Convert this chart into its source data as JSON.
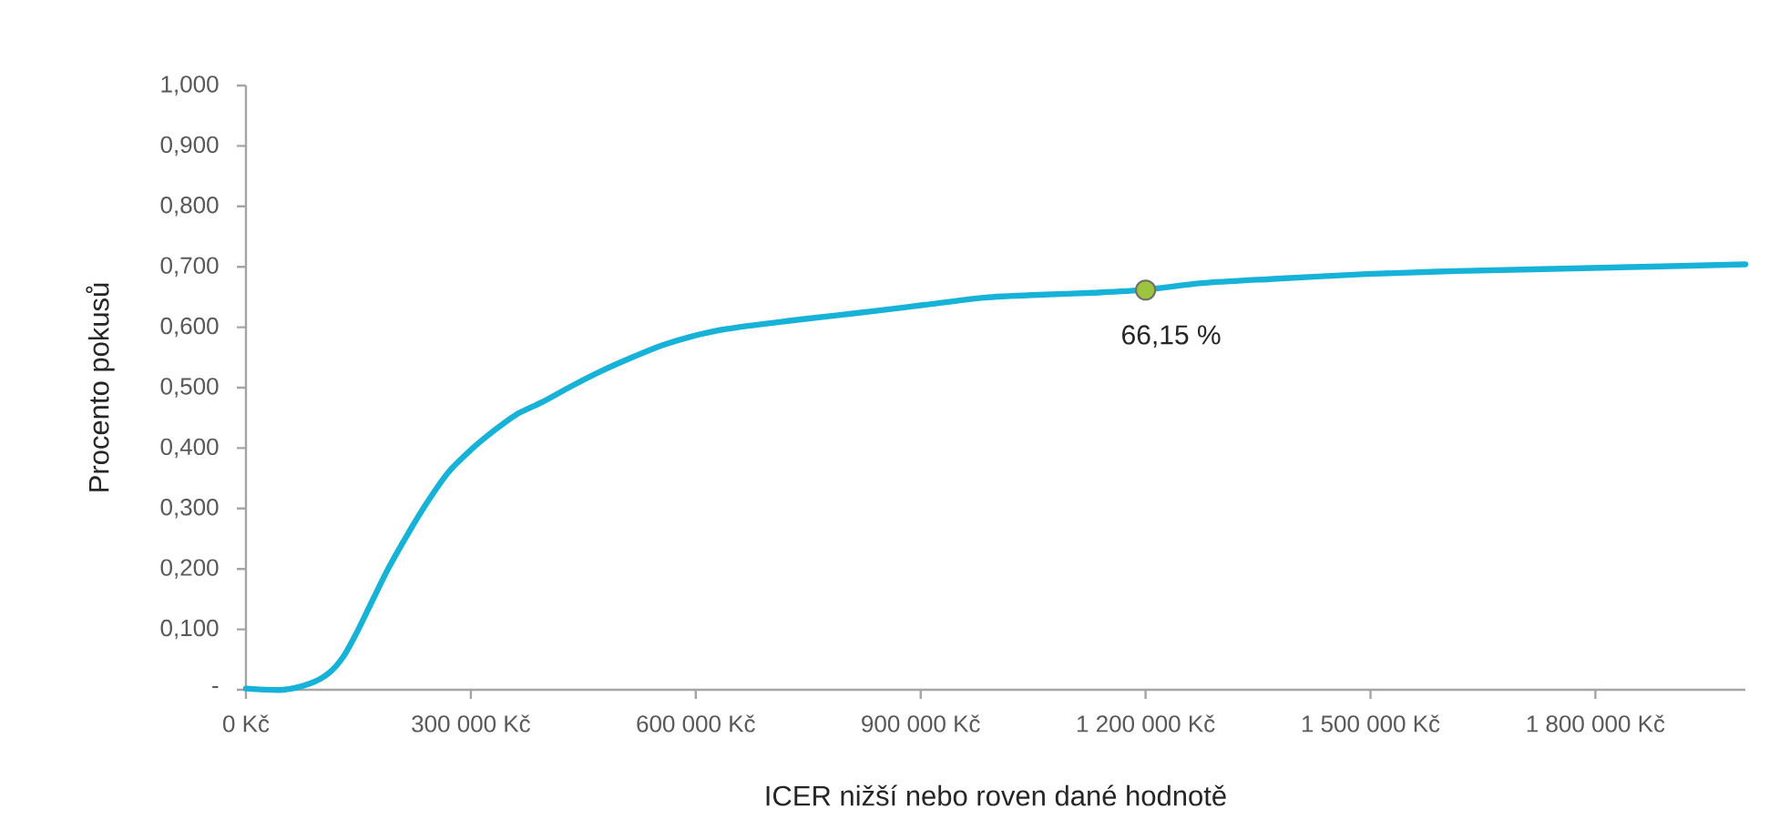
{
  "chart_data": {
    "type": "line",
    "xlabel": "ICER nižší nebo roven dané hodnotě",
    "ylabel": "Procento pokusů",
    "xlim": [
      0,
      2000000
    ],
    "ylim": [
      0,
      1
    ],
    "xticks": [
      {
        "value": 0,
        "label": "0 Kč"
      },
      {
        "value": 300000,
        "label": "300 000 Kč"
      },
      {
        "value": 600000,
        "label": "600 000 Kč"
      },
      {
        "value": 900000,
        "label": "900 000 Kč"
      },
      {
        "value": 1200000,
        "label": "1 200 000 Kč"
      },
      {
        "value": 1500000,
        "label": "1 500 000 Kč"
      },
      {
        "value": 1800000,
        "label": "1 800 000 Kč"
      }
    ],
    "yticks": [
      {
        "value": 0,
        "label": "-"
      },
      {
        "value": 0.1,
        "label": "0,100"
      },
      {
        "value": 0.2,
        "label": "0,200"
      },
      {
        "value": 0.3,
        "label": "0,300"
      },
      {
        "value": 0.4,
        "label": "0,400"
      },
      {
        "value": 0.5,
        "label": "0,500"
      },
      {
        "value": 0.6,
        "label": "0,600"
      },
      {
        "value": 0.7,
        "label": "0,700"
      },
      {
        "value": 0.8,
        "label": "0,800"
      },
      {
        "value": 0.9,
        "label": "0,900"
      },
      {
        "value": 1,
        "label": "1,000"
      }
    ],
    "grid": false,
    "line_style": "solid",
    "series": [
      {
        "color": "#17b2d8",
        "x": [
          0,
          50000,
          85000,
          110000,
          130000,
          150000,
          170000,
          190000,
          215000,
          240000,
          270000,
          300000,
          330000,
          360000,
          395000,
          435000,
          475000,
          515000,
          555000,
          595000,
          640000,
          720000,
          790000,
          840000,
          905000,
          985000,
          1065000,
          1130000,
          1200000,
          1275000,
          1370000,
          1495000,
          1615000,
          1795000,
          2000000
        ],
        "values": [
          0.002,
          0.0,
          0.01,
          0.027,
          0.055,
          0.1,
          0.151,
          0.201,
          0.256,
          0.307,
          0.36,
          0.397,
          0.428,
          0.455,
          0.476,
          0.503,
          0.528,
          0.55,
          0.57,
          0.585,
          0.597,
          0.61,
          0.62,
          0.627,
          0.637,
          0.649,
          0.654,
          0.657,
          0.662,
          0.673,
          0.68,
          0.688,
          0.693,
          0.698,
          0.704
        ]
      },
      {
        "type": "scatter",
        "color": "#9cc43e",
        "marker": "circle",
        "x": [
          1200000
        ],
        "values": [
          0.6615
        ],
        "value_labels": [
          "66,15 %"
        ]
      }
    ]
  }
}
